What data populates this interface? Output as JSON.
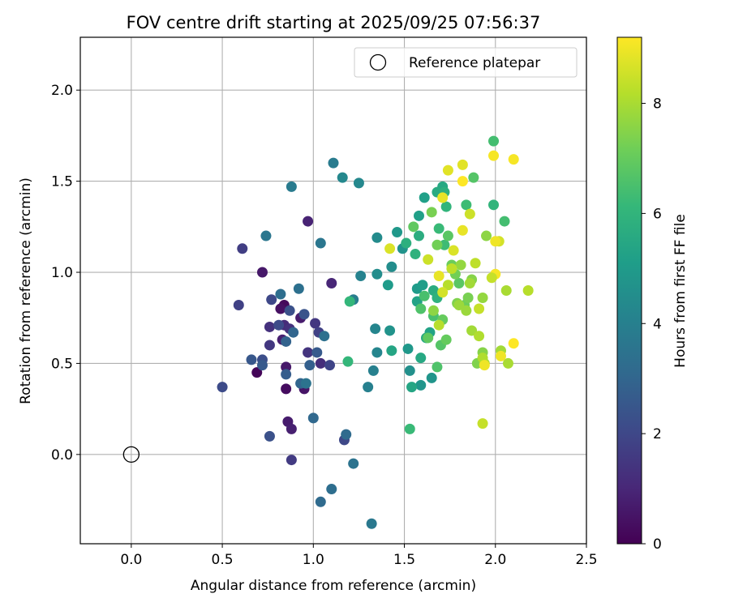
{
  "chart_data": {
    "type": "scatter",
    "title": "FOV centre drift starting at 2025/09/25 07:56:37",
    "xlabel": "Angular distance from reference (arcmin)",
    "ylabel": "Rotation from reference (arcmin)",
    "xlim": [
      -0.28,
      2.5
    ],
    "ylim": [
      -0.49,
      2.29
    ],
    "xticks": [
      "0.0",
      "0.5",
      "1.0",
      "1.5",
      "2.0",
      "2.5"
    ],
    "xtick_values": [
      0.0,
      0.5,
      1.0,
      1.5,
      2.0,
      2.5
    ],
    "yticks": [
      "0.0",
      "0.5",
      "1.0",
      "1.5",
      "2.0"
    ],
    "ytick_values": [
      0.0,
      0.5,
      1.0,
      1.5,
      2.0
    ],
    "grid": true,
    "legend": {
      "position": "top-right",
      "label": "Reference platepar"
    },
    "reference_point": {
      "x": 0.0,
      "y": 0.0
    },
    "colorbar": {
      "label": "Hours from first FF file",
      "min": 0,
      "max": 9.2,
      "ticks": [
        "0",
        "2",
        "4",
        "6",
        "8"
      ],
      "tick_values": [
        0,
        2,
        4,
        6,
        8
      ],
      "colormap": [
        "#440154",
        "#482878",
        "#3e4989",
        "#31688e",
        "#26828e",
        "#1f9e89",
        "#35b779",
        "#6ece58",
        "#b5de2b",
        "#fde725"
      ]
    },
    "points": [
      {
        "x": 0.69,
        "y": 0.45,
        "h": 0.1
      },
      {
        "x": 0.85,
        "y": 0.36,
        "h": 0.3
      },
      {
        "x": 0.84,
        "y": 0.82,
        "h": 0.2
      },
      {
        "x": 0.82,
        "y": 0.8,
        "h": 0.4
      },
      {
        "x": 0.85,
        "y": 0.48,
        "h": 0.6
      },
      {
        "x": 0.95,
        "y": 0.36,
        "h": 0.5
      },
      {
        "x": 0.72,
        "y": 1.0,
        "h": 0.6
      },
      {
        "x": 0.86,
        "y": 0.18,
        "h": 0.7
      },
      {
        "x": 0.88,
        "y": 0.14,
        "h": 0.8
      },
      {
        "x": 0.93,
        "y": 0.75,
        "h": 0.7
      },
      {
        "x": 0.83,
        "y": 0.63,
        "h": 0.8
      },
      {
        "x": 0.97,
        "y": 1.28,
        "h": 0.9
      },
      {
        "x": 1.1,
        "y": 0.94,
        "h": 1.0
      },
      {
        "x": 0.84,
        "y": 0.71,
        "h": 1.1
      },
      {
        "x": 1.04,
        "y": 0.5,
        "h": 1.2
      },
      {
        "x": 0.76,
        "y": 0.7,
        "h": 1.3
      },
      {
        "x": 0.87,
        "y": 0.69,
        "h": 1.3
      },
      {
        "x": 0.97,
        "y": 0.56,
        "h": 1.4
      },
      {
        "x": 1.01,
        "y": 0.72,
        "h": 1.5
      },
      {
        "x": 0.76,
        "y": 0.6,
        "h": 1.5
      },
      {
        "x": 0.88,
        "y": -0.03,
        "h": 1.6
      },
      {
        "x": 0.61,
        "y": 1.13,
        "h": 1.7
      },
      {
        "x": 0.59,
        "y": 0.82,
        "h": 1.8
      },
      {
        "x": 1.03,
        "y": 0.67,
        "h": 1.8
      },
      {
        "x": 1.09,
        "y": 0.49,
        "h": 1.9
      },
      {
        "x": 1.17,
        "y": 0.08,
        "h": 2.0
      },
      {
        "x": 0.77,
        "y": 0.85,
        "h": 2.0
      },
      {
        "x": 0.81,
        "y": 0.71,
        "h": 2.1
      },
      {
        "x": 0.5,
        "y": 0.37,
        "h": 2.1
      },
      {
        "x": 0.72,
        "y": 0.52,
        "h": 2.2
      },
      {
        "x": 0.76,
        "y": 0.1,
        "h": 2.3
      },
      {
        "x": 0.87,
        "y": 0.79,
        "h": 2.3
      },
      {
        "x": 0.95,
        "y": 0.77,
        "h": 2.4
      },
      {
        "x": 0.66,
        "y": 0.52,
        "h": 2.5
      },
      {
        "x": 1.02,
        "y": 0.56,
        "h": 2.6
      },
      {
        "x": 0.72,
        "y": 0.49,
        "h": 2.6
      },
      {
        "x": 0.85,
        "y": 0.44,
        "h": 2.7
      },
      {
        "x": 0.98,
        "y": 0.49,
        "h": 2.8
      },
      {
        "x": 0.85,
        "y": 0.62,
        "h": 2.9
      },
      {
        "x": 0.89,
        "y": 0.67,
        "h": 3.0
      },
      {
        "x": 0.93,
        "y": 0.39,
        "h": 3.0
      },
      {
        "x": 1.0,
        "y": 0.2,
        "h": 3.1
      },
      {
        "x": 1.18,
        "y": 0.11,
        "h": 3.2
      },
      {
        "x": 1.04,
        "y": -0.26,
        "h": 3.2
      },
      {
        "x": 1.1,
        "y": -0.19,
        "h": 3.3
      },
      {
        "x": 0.82,
        "y": 0.88,
        "h": 3.3
      },
      {
        "x": 0.92,
        "y": 0.91,
        "h": 3.4
      },
      {
        "x": 1.06,
        "y": 0.65,
        "h": 3.4
      },
      {
        "x": 1.22,
        "y": -0.05,
        "h": 3.5
      },
      {
        "x": 0.96,
        "y": 0.39,
        "h": 3.5
      },
      {
        "x": 0.74,
        "y": 1.2,
        "h": 3.6
      },
      {
        "x": 1.04,
        "y": 1.16,
        "h": 3.6
      },
      {
        "x": 1.32,
        "y": -0.38,
        "h": 3.7
      },
      {
        "x": 0.88,
        "y": 1.47,
        "h": 3.8
      },
      {
        "x": 1.11,
        "y": 1.6,
        "h": 3.8
      },
      {
        "x": 1.22,
        "y": 0.85,
        "h": 3.9
      },
      {
        "x": 1.3,
        "y": 0.37,
        "h": 4.0
      },
      {
        "x": 1.33,
        "y": 0.46,
        "h": 4.0
      },
      {
        "x": 1.26,
        "y": 0.98,
        "h": 4.1
      },
      {
        "x": 1.34,
        "y": 0.69,
        "h": 4.2
      },
      {
        "x": 1.35,
        "y": 0.56,
        "h": 4.2
      },
      {
        "x": 1.16,
        "y": 1.52,
        "h": 4.3
      },
      {
        "x": 1.25,
        "y": 1.49,
        "h": 4.3
      },
      {
        "x": 1.35,
        "y": 1.19,
        "h": 4.4
      },
      {
        "x": 1.35,
        "y": 0.99,
        "h": 4.5
      },
      {
        "x": 1.43,
        "y": 1.03,
        "h": 4.5
      },
      {
        "x": 1.53,
        "y": 0.46,
        "h": 4.6
      },
      {
        "x": 1.42,
        "y": 0.68,
        "h": 4.7
      },
      {
        "x": 1.49,
        "y": 1.13,
        "h": 4.7
      },
      {
        "x": 1.59,
        "y": 0.38,
        "h": 4.8
      },
      {
        "x": 1.65,
        "y": 0.42,
        "h": 4.8
      },
      {
        "x": 1.52,
        "y": 0.58,
        "h": 4.9
      },
      {
        "x": 1.46,
        "y": 1.22,
        "h": 4.9
      },
      {
        "x": 1.41,
        "y": 0.93,
        "h": 5.0
      },
      {
        "x": 1.57,
        "y": 0.91,
        "h": 5.0
      },
      {
        "x": 1.6,
        "y": 0.93,
        "h": 5.1
      },
      {
        "x": 1.61,
        "y": 1.41,
        "h": 5.2
      },
      {
        "x": 1.58,
        "y": 1.31,
        "h": 5.2
      },
      {
        "x": 1.57,
        "y": 0.84,
        "h": 5.3
      },
      {
        "x": 1.64,
        "y": 0.67,
        "h": 5.3
      },
      {
        "x": 1.43,
        "y": 0.57,
        "h": 5.4
      },
      {
        "x": 1.54,
        "y": 0.37,
        "h": 5.4
      },
      {
        "x": 1.59,
        "y": 0.53,
        "h": 5.5
      },
      {
        "x": 1.71,
        "y": 1.47,
        "h": 5.5
      },
      {
        "x": 1.68,
        "y": 1.44,
        "h": 5.6
      },
      {
        "x": 1.62,
        "y": 0.64,
        "h": 5.6
      },
      {
        "x": 1.58,
        "y": 1.2,
        "h": 5.7
      },
      {
        "x": 1.66,
        "y": 0.9,
        "h": 5.7
      },
      {
        "x": 1.72,
        "y": 1.44,
        "h": 5.8
      },
      {
        "x": 1.51,
        "y": 1.16,
        "h": 5.8
      },
      {
        "x": 1.56,
        "y": 1.1,
        "h": 5.9
      },
      {
        "x": 1.68,
        "y": 0.86,
        "h": 5.9
      },
      {
        "x": 1.73,
        "y": 1.36,
        "h": 6.0
      },
      {
        "x": 1.99,
        "y": 1.37,
        "h": 6.0
      },
      {
        "x": 1.2,
        "y": 0.84,
        "h": 6.1
      },
      {
        "x": 1.19,
        "y": 0.51,
        "h": 6.1
      },
      {
        "x": 1.53,
        "y": 0.14,
        "h": 6.2
      },
      {
        "x": 1.69,
        "y": 1.24,
        "h": 6.2
      },
      {
        "x": 1.84,
        "y": 1.37,
        "h": 6.3
      },
      {
        "x": 1.72,
        "y": 1.15,
        "h": 6.3
      },
      {
        "x": 2.05,
        "y": 1.28,
        "h": 6.4
      },
      {
        "x": 1.99,
        "y": 1.72,
        "h": 6.4
      },
      {
        "x": 1.66,
        "y": 0.76,
        "h": 6.5
      },
      {
        "x": 1.61,
        "y": 0.87,
        "h": 6.5
      },
      {
        "x": 1.68,
        "y": 0.48,
        "h": 6.6
      },
      {
        "x": 1.59,
        "y": 0.8,
        "h": 6.6
      },
      {
        "x": 1.7,
        "y": 0.6,
        "h": 6.7
      },
      {
        "x": 1.88,
        "y": 1.52,
        "h": 6.7
      },
      {
        "x": 1.74,
        "y": 1.2,
        "h": 6.8
      },
      {
        "x": 1.8,
        "y": 0.94,
        "h": 6.8
      },
      {
        "x": 1.55,
        "y": 1.25,
        "h": 6.9
      },
      {
        "x": 1.63,
        "y": 0.64,
        "h": 6.9
      },
      {
        "x": 1.73,
        "y": 0.63,
        "h": 7.0
      },
      {
        "x": 1.71,
        "y": 0.74,
        "h": 7.0
      },
      {
        "x": 1.83,
        "y": 0.82,
        "h": 7.1
      },
      {
        "x": 1.76,
        "y": 1.04,
        "h": 7.1
      },
      {
        "x": 1.78,
        "y": 0.99,
        "h": 7.2
      },
      {
        "x": 1.68,
        "y": 1.15,
        "h": 7.2
      },
      {
        "x": 1.65,
        "y": 1.33,
        "h": 7.3
      },
      {
        "x": 1.85,
        "y": 0.86,
        "h": 7.3
      },
      {
        "x": 1.9,
        "y": 0.5,
        "h": 7.4
      },
      {
        "x": 1.79,
        "y": 0.83,
        "h": 7.4
      },
      {
        "x": 1.93,
        "y": 0.56,
        "h": 7.5
      },
      {
        "x": 1.87,
        "y": 0.96,
        "h": 7.5
      },
      {
        "x": 1.95,
        "y": 1.2,
        "h": 7.6
      },
      {
        "x": 1.66,
        "y": 0.79,
        "h": 7.6
      },
      {
        "x": 1.81,
        "y": 1.04,
        "h": 7.7
      },
      {
        "x": 1.93,
        "y": 0.86,
        "h": 7.7
      },
      {
        "x": 1.84,
        "y": 0.79,
        "h": 7.8
      },
      {
        "x": 1.8,
        "y": 0.82,
        "h": 7.8
      },
      {
        "x": 1.87,
        "y": 0.68,
        "h": 7.9
      },
      {
        "x": 2.03,
        "y": 0.57,
        "h": 7.9
      },
      {
        "x": 1.94,
        "y": 0.5,
        "h": 8.0
      },
      {
        "x": 2.07,
        "y": 0.5,
        "h": 8.0
      },
      {
        "x": 1.91,
        "y": 0.65,
        "h": 8.1
      },
      {
        "x": 1.93,
        "y": 0.53,
        "h": 8.1
      },
      {
        "x": 1.69,
        "y": 0.71,
        "h": 8.2
      },
      {
        "x": 1.74,
        "y": 0.93,
        "h": 8.2
      },
      {
        "x": 1.76,
        "y": 1.02,
        "h": 8.3
      },
      {
        "x": 1.89,
        "y": 1.05,
        "h": 8.3
      },
      {
        "x": 1.91,
        "y": 0.8,
        "h": 8.4
      },
      {
        "x": 1.93,
        "y": 0.17,
        "h": 8.4
      },
      {
        "x": 1.63,
        "y": 1.07,
        "h": 8.5
      },
      {
        "x": 1.86,
        "y": 1.32,
        "h": 8.5
      },
      {
        "x": 1.71,
        "y": 0.89,
        "h": 8.6
      },
      {
        "x": 2.02,
        "y": 1.17,
        "h": 8.6
      },
      {
        "x": 1.77,
        "y": 1.12,
        "h": 8.7
      },
      {
        "x": 1.42,
        "y": 1.13,
        "h": 8.7
      },
      {
        "x": 1.82,
        "y": 1.59,
        "h": 8.8
      },
      {
        "x": 1.74,
        "y": 1.56,
        "h": 8.8
      },
      {
        "x": 1.82,
        "y": 1.23,
        "h": 8.9
      },
      {
        "x": 1.69,
        "y": 0.98,
        "h": 8.9
      },
      {
        "x": 2.0,
        "y": 1.17,
        "h": 9.0
      },
      {
        "x": 1.94,
        "y": 0.49,
        "h": 9.0
      },
      {
        "x": 2.03,
        "y": 0.54,
        "h": 9.0
      },
      {
        "x": 2.1,
        "y": 1.62,
        "h": 9.1
      },
      {
        "x": 1.99,
        "y": 1.64,
        "h": 9.1
      },
      {
        "x": 2.0,
        "y": 0.99,
        "h": 9.1
      },
      {
        "x": 2.1,
        "y": 0.61,
        "h": 9.2
      },
      {
        "x": 1.82,
        "y": 1.5,
        "h": 9.2
      },
      {
        "x": 1.71,
        "y": 1.41,
        "h": 8.9
      },
      {
        "x": 2.18,
        "y": 0.9,
        "h": 8.2
      },
      {
        "x": 2.06,
        "y": 0.9,
        "h": 8.0
      },
      {
        "x": 1.98,
        "y": 0.97,
        "h": 8.4
      },
      {
        "x": 1.86,
        "y": 0.94,
        "h": 7.9
      }
    ]
  }
}
